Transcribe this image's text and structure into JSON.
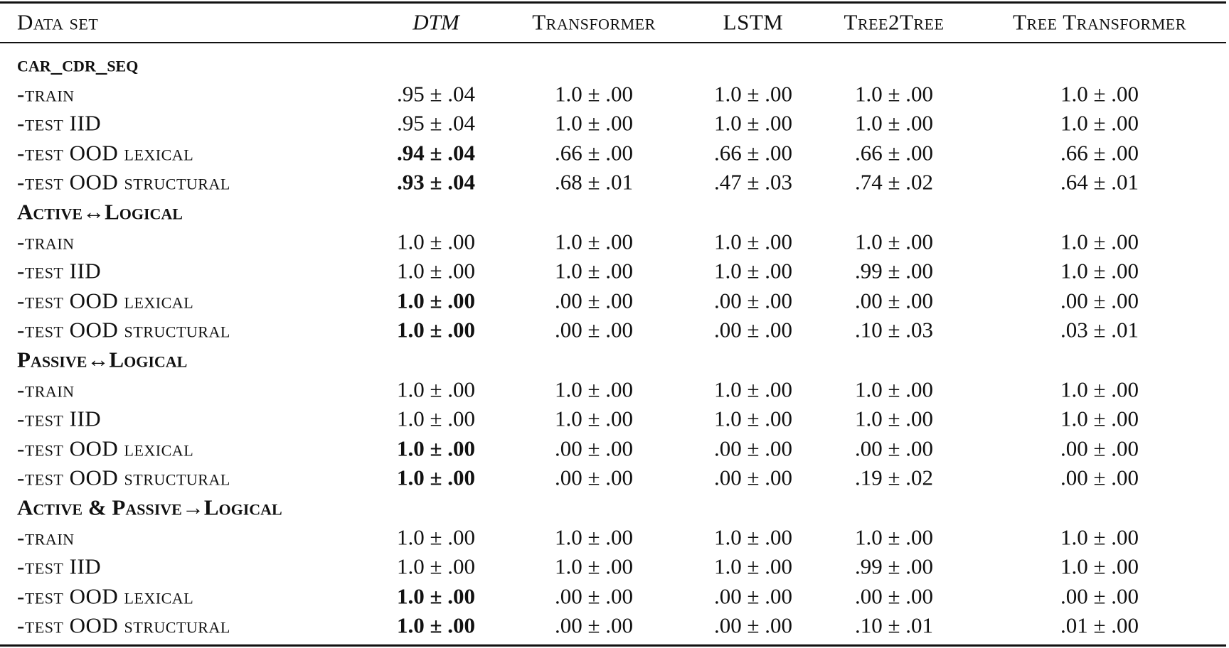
{
  "table": {
    "headers": [
      "Data set",
      "DTM",
      "Transformer",
      "LSTM",
      "Tree2Tree",
      "Tree Transformer"
    ],
    "italic_header": 1,
    "groups": [
      {
        "name": "car_cdr_seq",
        "rows": [
          {
            "label": "-train",
            "cells": [
              ".95 ± .04",
              "1.0 ± .00",
              "1.0 ± .00",
              "1.0 ± .00",
              "1.0 ± .00"
            ]
          },
          {
            "label": "-test IID",
            "cells": [
              ".95 ± .04",
              "1.0 ± .00",
              "1.0 ± .00",
              "1.0 ± .00",
              "1.0 ± .00"
            ]
          },
          {
            "label": "-test OOD lexical",
            "cells": [
              ".94 ± .04",
              ".66 ± .00",
              ".66 ± .00",
              ".66 ± .00",
              ".66 ± .00"
            ],
            "bold_cell": 0
          },
          {
            "label": "-test OOD structural",
            "cells": [
              ".93 ± .04",
              ".68 ± .01",
              ".47 ± .03",
              ".74 ± .02",
              ".64 ± .01"
            ],
            "bold_cell": 0
          }
        ]
      },
      {
        "name": "Active↔Logical",
        "rows": [
          {
            "label": "-train",
            "cells": [
              "1.0 ± .00",
              "1.0 ± .00",
              "1.0 ± .00",
              "1.0 ± .00",
              "1.0 ± .00"
            ]
          },
          {
            "label": "-test IID",
            "cells": [
              "1.0 ± .00",
              "1.0 ± .00",
              "1.0 ± .00",
              ".99 ± .00",
              "1.0 ± .00"
            ]
          },
          {
            "label": "-test OOD lexical",
            "cells": [
              "1.0 ± .00",
              ".00 ± .00",
              ".00 ± .00",
              ".00 ± .00",
              ".00 ± .00"
            ],
            "bold_cell": 0
          },
          {
            "label": "-test OOD structural",
            "cells": [
              "1.0 ± .00",
              ".00 ± .00",
              ".00 ± .00",
              ".10 ± .03",
              ".03 ± .01"
            ],
            "bold_cell": 0
          }
        ]
      },
      {
        "name": "Passive↔Logical",
        "rows": [
          {
            "label": "-train",
            "cells": [
              "1.0 ± .00",
              "1.0 ± .00",
              "1.0 ± .00",
              "1.0 ± .00",
              "1.0 ± .00"
            ]
          },
          {
            "label": "-test IID",
            "cells": [
              "1.0 ± .00",
              "1.0 ± .00",
              "1.0 ± .00",
              "1.0 ± .00",
              "1.0 ± .00"
            ]
          },
          {
            "label": "-test OOD lexical",
            "cells": [
              "1.0 ± .00",
              ".00 ± .00",
              ".00 ± .00",
              ".00 ± .00",
              ".00 ± .00"
            ],
            "bold_cell": 0
          },
          {
            "label": "-test OOD structural",
            "cells": [
              "1.0 ± .00",
              ".00 ± .00",
              ".00 ± .00",
              ".19 ± .02",
              ".00 ± .00"
            ],
            "bold_cell": 0
          }
        ]
      },
      {
        "name": "Active & Passive→Logical",
        "rows": [
          {
            "label": "-train",
            "cells": [
              "1.0 ± .00",
              "1.0 ± .00",
              "1.0 ± .00",
              "1.0 ± .00",
              "1.0 ± .00"
            ]
          },
          {
            "label": "-test IID",
            "cells": [
              "1.0 ± .00",
              "1.0 ± .00",
              "1.0 ± .00",
              ".99 ± .00",
              "1.0 ± .00"
            ]
          },
          {
            "label": "-test OOD lexical",
            "cells": [
              "1.0 ± .00",
              ".00 ± .00",
              ".00 ± .00",
              ".00 ± .00",
              ".00 ± .00"
            ],
            "bold_cell": 0
          },
          {
            "label": "-test OOD structural",
            "cells": [
              "1.0 ± .00",
              ".00 ± .00",
              ".00 ± .00",
              ".10 ± .01",
              ".01 ± .00"
            ],
            "bold_cell": 0
          }
        ]
      }
    ]
  }
}
